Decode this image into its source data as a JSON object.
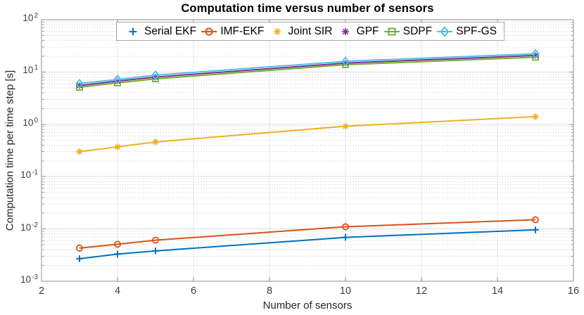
{
  "title": "Computation time versus number of sensors",
  "axes": {
    "xlabel": "Number of sensors",
    "ylabel": "Computation time per time step [s]",
    "x_ticks": [
      2,
      4,
      6,
      8,
      10,
      12,
      14,
      16
    ],
    "y_tick_exponents": [
      2,
      1,
      0,
      -1,
      -2,
      -3
    ],
    "x_range": [
      2,
      16
    ],
    "y_range_exponents": [
      -3,
      2
    ],
    "y_scale": "log10",
    "grid": "on"
  },
  "legend": {
    "position": "top-center",
    "items": [
      "Serial EKF",
      "IMF-EKF",
      "Joint SIR",
      "GPF",
      "SDPF",
      "SPF-GS"
    ]
  },
  "chart_data": {
    "type": "line",
    "title": "Computation time versus number of sensors",
    "xlabel": "Number of sensors",
    "ylabel": "Computation time per time step [s]",
    "x": [
      3,
      4,
      5,
      10,
      15
    ],
    "x_range": [
      2,
      16
    ],
    "y_range": [
      0.001,
      100
    ],
    "y_scale": "log10",
    "series": [
      {
        "name": "Serial EKF",
        "marker": "plus",
        "color": "#0072BD",
        "values": [
          0.0027,
          0.0033,
          0.0038,
          0.0069,
          0.0096
        ]
      },
      {
        "name": "IMF-EKF",
        "marker": "circle",
        "color": "#D95319",
        "values": [
          0.0043,
          0.0051,
          0.0061,
          0.011,
          0.015
        ]
      },
      {
        "name": "Joint SIR",
        "marker": "asterisk",
        "color": "#EDB120",
        "values": [
          0.3,
          0.37,
          0.46,
          0.92,
          1.4
        ]
      },
      {
        "name": "GPF",
        "marker": "asterisk",
        "color": "#7E2F8E",
        "values": [
          5.5,
          6.7,
          8.0,
          14.8,
          20.7
        ]
      },
      {
        "name": "SDPF",
        "marker": "square",
        "color": "#77AC30",
        "values": [
          5.1,
          6.2,
          7.4,
          13.8,
          19.2
        ]
      },
      {
        "name": "SPF-GS",
        "marker": "diamond",
        "color": "#4DBEEE",
        "values": [
          6.0,
          7.2,
          8.7,
          16.0,
          22.3
        ]
      }
    ]
  }
}
